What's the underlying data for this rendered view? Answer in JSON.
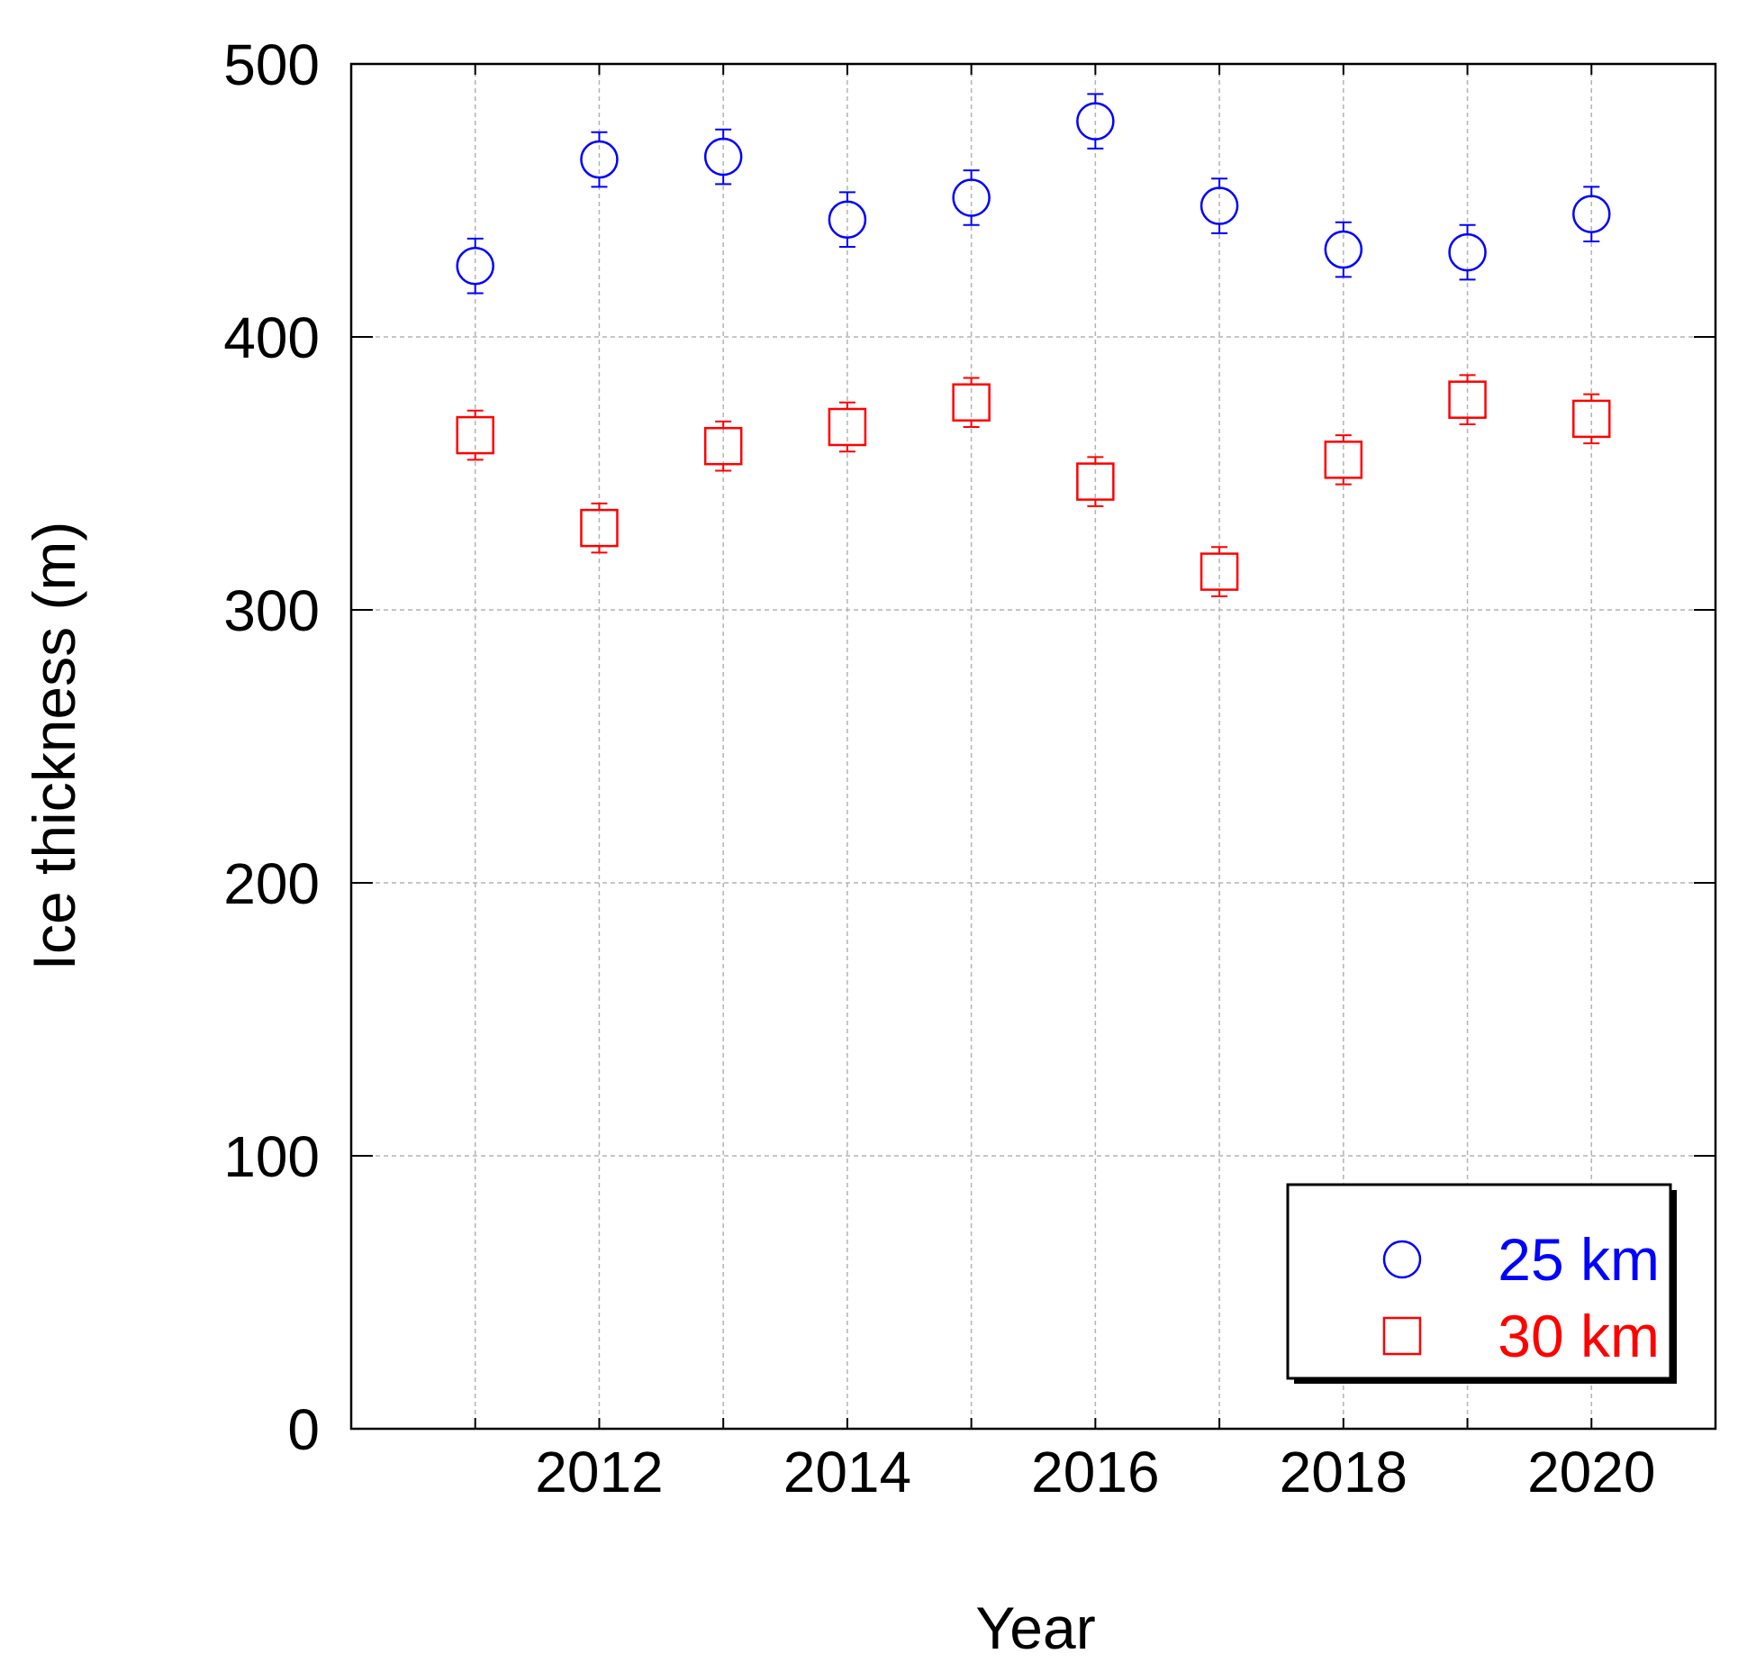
{
  "chart_data": {
    "type": "scatter",
    "xlabel": "Year",
    "ylabel": "Ice thickness (m)",
    "xlim": [
      2010,
      2021
    ],
    "ylim": [
      0,
      500
    ],
    "x_ticks": [
      2012,
      2014,
      2016,
      2018,
      2020
    ],
    "y_ticks": [
      0,
      100,
      200,
      300,
      400,
      500
    ],
    "grid": true,
    "legend_position": "bottom-right",
    "series": [
      {
        "name": "25 km",
        "marker": "circle",
        "color": "#0000ff",
        "x": [
          2011,
          2012,
          2013,
          2014,
          2015,
          2016,
          2017,
          2018,
          2019,
          2020
        ],
        "y": [
          426,
          465,
          466,
          443,
          451,
          479,
          448,
          432,
          431,
          445
        ],
        "yerr": [
          10,
          10,
          10,
          10,
          10,
          10,
          10,
          10,
          10,
          10
        ]
      },
      {
        "name": "30 km",
        "marker": "square",
        "color": "#ff0000",
        "x": [
          2011,
          2012,
          2013,
          2014,
          2015,
          2016,
          2017,
          2018,
          2019,
          2020
        ],
        "y": [
          364,
          330,
          360,
          367,
          376,
          347,
          314,
          355,
          377,
          370
        ],
        "yerr": [
          9,
          9,
          9,
          9,
          9,
          9,
          9,
          9,
          9,
          9
        ]
      }
    ]
  }
}
